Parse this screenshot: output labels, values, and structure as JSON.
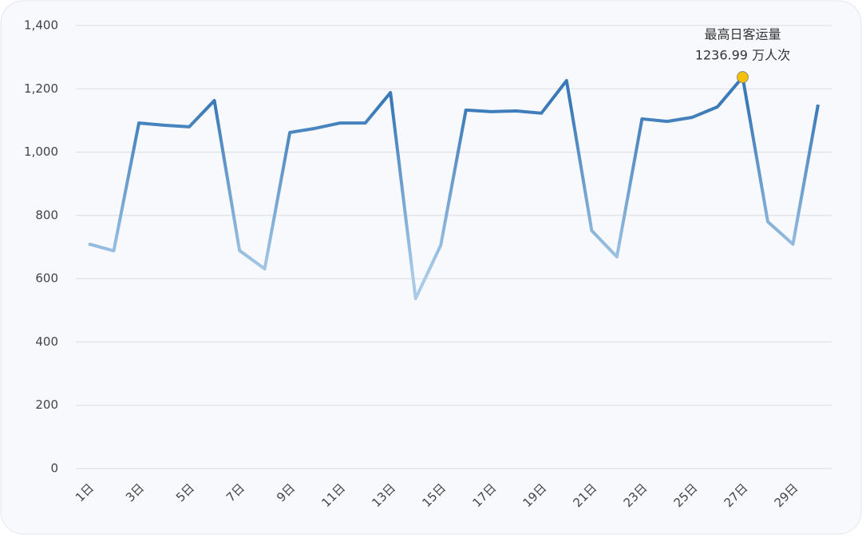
{
  "chart_data": {
    "type": "line",
    "categories": [
      "1日",
      null,
      "3日",
      null,
      "5日",
      null,
      "7日",
      null,
      "9日",
      null,
      "11日",
      null,
      "13日",
      null,
      "15日",
      null,
      "17日",
      null,
      "19日",
      null,
      "21日",
      null,
      "23日",
      null,
      "25日",
      null,
      "27日",
      null,
      "29日",
      null
    ],
    "series": [
      {
        "name": "日客运量",
        "colors": [
          "#3a7ab8",
          "#a9cbe8"
        ],
        "values": [
          710,
          688,
          1092,
          1085,
          1080,
          1163,
          689,
          631,
          1062,
          1075,
          1092,
          1092,
          1188,
          537,
          706,
          1133,
          1128,
          1130,
          1123,
          1226,
          752,
          669,
          1105,
          1097,
          1110,
          1143,
          1236.99,
          780,
          709,
          1150
        ]
      }
    ],
    "ylim": [
      0,
      1400
    ],
    "yticks": [
      0,
      200,
      400,
      600,
      800,
      {
        "value": 1000,
        "label": "1,000"
      },
      {
        "value": 1200,
        "label": "1,200"
      },
      {
        "value": 1400,
        "label": "1,400"
      }
    ],
    "grid": true,
    "annotation": {
      "title": "最高日客运量",
      "label": "1236.99 万人次",
      "color": "#f5c000"
    }
  }
}
